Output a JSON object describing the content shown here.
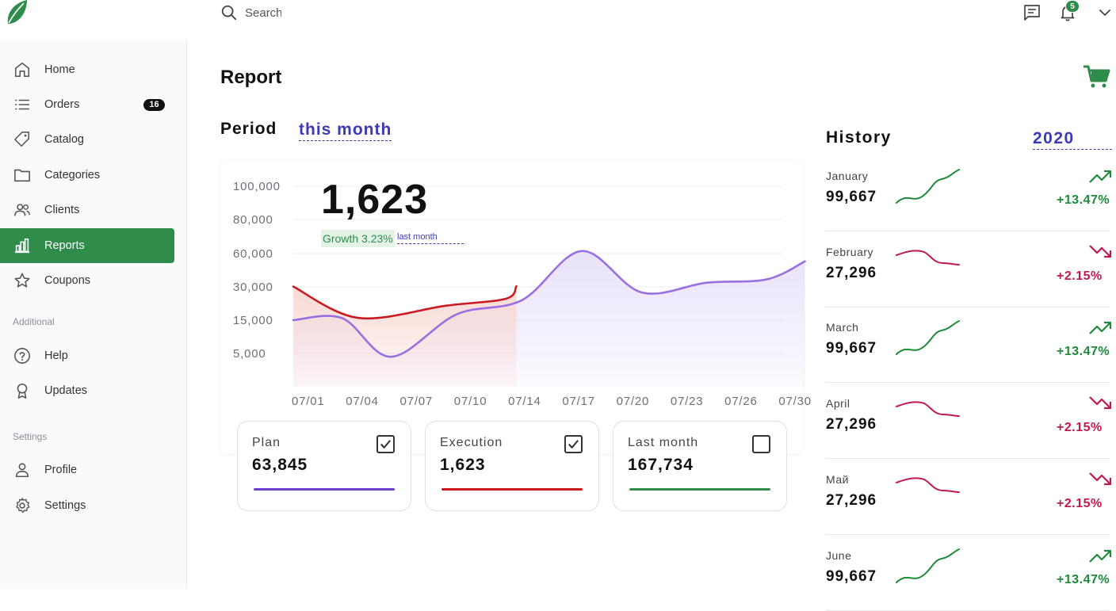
{
  "search": {
    "placeholder": "Search"
  },
  "notifications": {
    "count": "5"
  },
  "sidebar": {
    "items": [
      {
        "label": "Home"
      },
      {
        "label": "Orders",
        "badge": "16"
      },
      {
        "label": "Catalog"
      },
      {
        "label": "Categories"
      },
      {
        "label": "Clients"
      },
      {
        "label": "Reports"
      },
      {
        "label": "Coupons"
      }
    ],
    "section_additional": "Additional",
    "additional_items": [
      {
        "label": "Help"
      },
      {
        "label": "Updates"
      }
    ],
    "section_settings": "Settings",
    "settings_items": [
      {
        "label": "Profile"
      },
      {
        "label": "Settings"
      }
    ]
  },
  "main": {
    "title": "Report",
    "period_label": "Period",
    "period_value": "this month"
  },
  "summary": {
    "big_number": "1,623",
    "growth": "Growth 3.23%",
    "growth_ref": "last month"
  },
  "chart_data": {
    "type": "area",
    "categories": [
      "07/01",
      "07/04",
      "07/07",
      "07/10",
      "07/14",
      "07/17",
      "07/20",
      "07/23",
      "07/26",
      "07/30"
    ],
    "y_ticks": [
      "100,000",
      "80,000",
      "60,000",
      "30,000",
      "15,000",
      "5,000"
    ],
    "y_tick_values": [
      100000,
      80000,
      60000,
      30000,
      15000,
      5000
    ],
    "grid": true,
    "series": [
      {
        "color": "#9a6fe0",
        "fill": "#e7e0fa",
        "points": [
          [
            0,
            15000
          ],
          [
            0.9,
            15900
          ],
          [
            1.8,
            4000
          ],
          [
            3.0,
            17600
          ],
          [
            4.2,
            24000
          ],
          [
            5.3,
            61500
          ],
          [
            6.4,
            27500
          ],
          [
            7.6,
            33800
          ],
          [
            8.7,
            36800
          ],
          [
            9.4,
            53000
          ]
        ]
      },
      {
        "color": "#cc1b20",
        "fill": "#f9d7d2",
        "points": [
          [
            0,
            30300
          ],
          [
            1.2,
            16000
          ],
          [
            2.8,
            21500
          ],
          [
            3.9,
            24600
          ],
          [
            4.1,
            30600
          ]
        ]
      }
    ]
  },
  "metrics": [
    {
      "label": "Plan",
      "value": "63,845",
      "checked": true,
      "color": "#6a3fd0"
    },
    {
      "label": "Execution",
      "value": "1,623",
      "checked": true,
      "color": "#cc1b20"
    },
    {
      "label": "Last month",
      "value": "167,734",
      "checked": false,
      "color": "#2f8c4b"
    }
  ],
  "history": {
    "title": "History",
    "year": "2020",
    "rows": [
      {
        "month": "January",
        "value": "99,667",
        "change": "+13.47%",
        "trend": "up"
      },
      {
        "month": "February",
        "value": "27,296",
        "change": "+2.15%",
        "trend": "down"
      },
      {
        "month": "March",
        "value": "99,667",
        "change": "+13.47%",
        "trend": "up"
      },
      {
        "month": "April",
        "value": "27,296",
        "change": "+2.15%",
        "trend": "down"
      },
      {
        "month": "Май",
        "value": "27,296",
        "change": "+2.15%",
        "trend": "down"
      },
      {
        "month": "June",
        "value": "99,667",
        "change": "+13.47%",
        "trend": "up"
      }
    ]
  },
  "colors": {
    "accent": "#2f8c4b",
    "link": "#3d3ab5",
    "up": "#1e8a3a",
    "down": "#c2184f"
  }
}
